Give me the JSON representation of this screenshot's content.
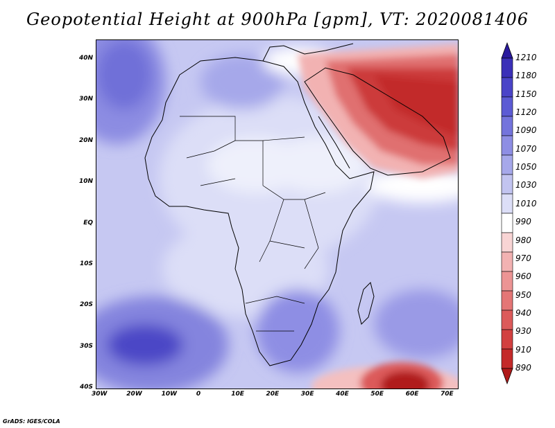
{
  "title": "Geopotential Height at 900hPa [gpm], VT: 2020081406",
  "credit": "GrADS: IGES/COLA",
  "map": {
    "region": "Africa and Middle East",
    "lon_range": [
      -30,
      75
    ],
    "lat_range": [
      -40,
      45
    ],
    "lat_labels": [
      "40N",
      "30N",
      "20N",
      "10N",
      "EQ",
      "10S",
      "20S",
      "30S",
      "40S"
    ],
    "lon_labels": [
      "30W",
      "20W",
      "10W",
      "0",
      "10E",
      "20E",
      "30E",
      "40E",
      "50E",
      "60E",
      "70E"
    ]
  },
  "colorbar": {
    "labels": [
      "1210",
      "1180",
      "1150",
      "1120",
      "1090",
      "1070",
      "1050",
      "1030",
      "1010",
      "990",
      "980",
      "970",
      "960",
      "950",
      "940",
      "930",
      "910",
      "890"
    ],
    "colors": [
      "#2a1a9e",
      "#3b30b8",
      "#4a44c8",
      "#5c5bd4",
      "#7474dc",
      "#8e8ee4",
      "#a6a8ea",
      "#c2c4f0",
      "#dcdef7",
      "#ffffff",
      "#f8d4d4",
      "#f2b2b2",
      "#ec9494",
      "#e47676",
      "#dc5a5a",
      "#d24040",
      "#c42a2a",
      "#b01a1a"
    ]
  }
}
